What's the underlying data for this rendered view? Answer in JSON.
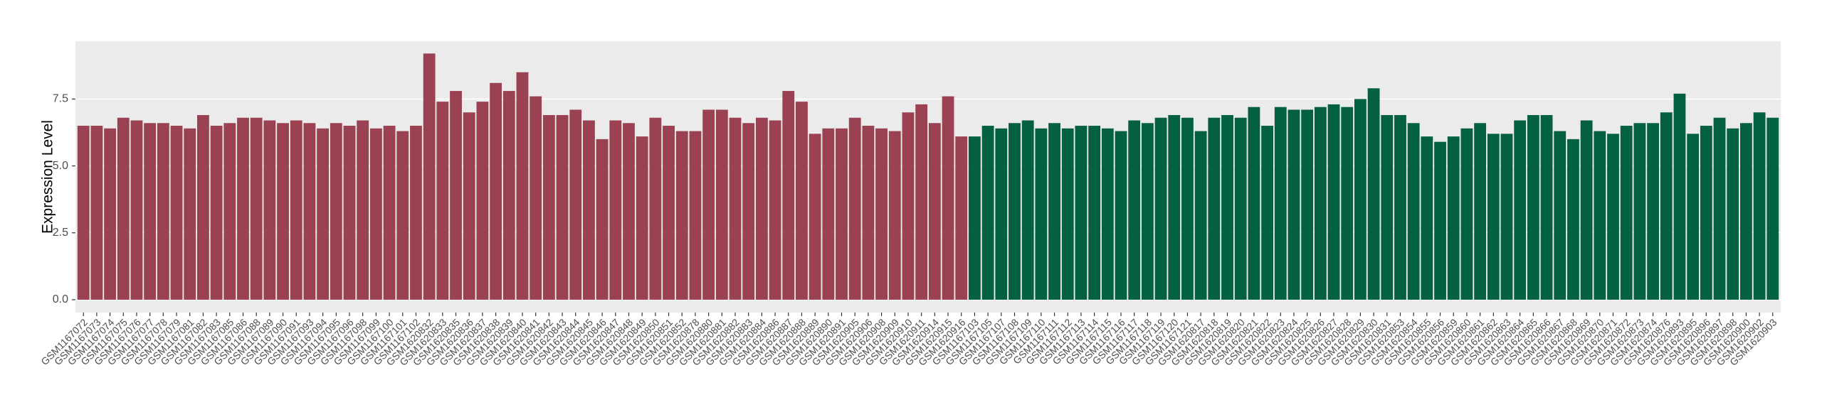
{
  "chart_data": {
    "type": "bar",
    "y_label": "Expression Level",
    "categories": [
      "GSM1167072",
      "GSM1167073",
      "GSM1167074",
      "GSM1167075",
      "GSM1167076",
      "GSM1167077",
      "GSM1167078",
      "GSM1167079",
      "GSM1167081",
      "GSM1167082",
      "GSM1167083",
      "GSM1167085",
      "GSM1167086",
      "GSM1167088",
      "GSM1167089",
      "GSM1167090",
      "GSM1167091",
      "GSM1167093",
      "GSM1167094",
      "GSM1167095",
      "GSM1167096",
      "GSM1167098",
      "GSM1167099",
      "GSM1167100",
      "GSM1167101",
      "GSM1167102",
      "GSM1620832",
      "GSM1620833",
      "GSM1620835",
      "GSM1620836",
      "GSM1620837",
      "GSM1620838",
      "GSM1620839",
      "GSM1620840",
      "GSM1620841",
      "GSM1620842",
      "GSM1620843",
      "GSM1620844",
      "GSM1620845",
      "GSM1620846",
      "GSM1620847",
      "GSM1620848",
      "GSM1620849",
      "GSM1620850",
      "GSM1620851",
      "GSM1620852",
      "GSM1620878",
      "GSM1620880",
      "GSM1620881",
      "GSM1620882",
      "GSM1620883",
      "GSM1620884",
      "GSM1620886",
      "GSM1620887",
      "GSM1620888",
      "GSM1620889",
      "GSM1620890",
      "GSM1620891",
      "GSM1620905",
      "GSM1620906",
      "GSM1620908",
      "GSM1620909",
      "GSM1620910",
      "GSM1620911",
      "GSM1620914",
      "GSM1620915",
      "GSM1620916",
      "GSM1167103",
      "GSM1167105",
      "GSM1167107",
      "GSM1167108",
      "GSM1167109",
      "GSM1167110",
      "GSM1167111",
      "GSM1167112",
      "GSM1167113",
      "GSM1167114",
      "GSM1167115",
      "GSM1167116",
      "GSM1167117",
      "GSM1167118",
      "GSM1167119",
      "GSM1167120",
      "GSM1167121",
      "GSM1620817",
      "GSM1620818",
      "GSM1620819",
      "GSM1620820",
      "GSM1620821",
      "GSM1620822",
      "GSM1620823",
      "GSM1620824",
      "GSM1620825",
      "GSM1620826",
      "GSM1620827",
      "GSM1620828",
      "GSM1620829",
      "GSM1620830",
      "GSM1620831",
      "GSM1620853",
      "GSM1620854",
      "GSM1620855",
      "GSM1620856",
      "GSM1620859",
      "GSM1620860",
      "GSM1620861",
      "GSM1620862",
      "GSM1620863",
      "GSM1620864",
      "GSM1620865",
      "GSM1620866",
      "GSM1620867",
      "GSM1620868",
      "GSM1620869",
      "GSM1620870",
      "GSM1620871",
      "GSM1620872",
      "GSM1620873",
      "GSM1620874",
      "GSM1620876",
      "GSM1620893",
      "GSM1620895",
      "GSM1620896",
      "GSM1620897",
      "GSM1620898",
      "GSM1620900",
      "GSM1620902",
      "GSM1620903"
    ],
    "values": [
      6.5,
      6.5,
      6.4,
      6.8,
      6.7,
      6.6,
      6.6,
      6.5,
      6.4,
      6.9,
      6.5,
      6.6,
      6.8,
      6.8,
      6.7,
      6.6,
      6.7,
      6.6,
      6.4,
      6.6,
      6.5,
      6.7,
      6.4,
      6.5,
      6.3,
      6.5,
      9.2,
      7.4,
      7.8,
      7.0,
      7.4,
      8.1,
      7.8,
      8.5,
      7.6,
      6.9,
      6.9,
      7.1,
      6.7,
      6.0,
      6.7,
      6.6,
      6.1,
      6.8,
      6.5,
      6.3,
      6.3,
      7.1,
      7.1,
      6.8,
      6.6,
      6.8,
      6.7,
      7.8,
      7.4,
      6.2,
      6.4,
      6.4,
      6.8,
      6.5,
      6.4,
      6.3,
      7.0,
      7.3,
      6.6,
      7.6,
      6.1,
      6.1,
      6.5,
      6.4,
      6.6,
      6.7,
      6.4,
      6.6,
      6.4,
      6.5,
      6.5,
      6.4,
      6.3,
      6.7,
      6.6,
      6.8,
      6.9,
      6.8,
      6.3,
      6.8,
      6.9,
      6.8,
      7.2,
      6.5,
      7.2,
      7.1,
      7.1,
      7.2,
      7.3,
      7.2,
      7.5,
      7.9,
      6.9,
      6.9,
      6.6,
      6.1,
      5.9,
      6.1,
      6.4,
      6.6,
      6.2,
      6.2,
      6.7,
      6.9,
      6.9,
      6.3,
      6.0,
      6.7,
      6.3,
      6.2,
      6.5,
      6.6,
      6.6,
      7.0,
      7.7,
      6.2,
      6.5,
      6.8,
      6.4,
      6.6,
      7.0,
      6.8
    ],
    "colors": [
      "#9a4152",
      "#9a4152",
      "#9a4152",
      "#9a4152",
      "#9a4152",
      "#9a4152",
      "#9a4152",
      "#9a4152",
      "#9a4152",
      "#9a4152",
      "#9a4152",
      "#9a4152",
      "#9a4152",
      "#9a4152",
      "#9a4152",
      "#9a4152",
      "#9a4152",
      "#9a4152",
      "#9a4152",
      "#9a4152",
      "#9a4152",
      "#9a4152",
      "#9a4152",
      "#9a4152",
      "#9a4152",
      "#9a4152",
      "#9a4152",
      "#9a4152",
      "#9a4152",
      "#9a4152",
      "#9a4152",
      "#9a4152",
      "#9a4152",
      "#9a4152",
      "#9a4152",
      "#9a4152",
      "#9a4152",
      "#9a4152",
      "#9a4152",
      "#9a4152",
      "#9a4152",
      "#9a4152",
      "#9a4152",
      "#9a4152",
      "#9a4152",
      "#9a4152",
      "#9a4152",
      "#9a4152",
      "#9a4152",
      "#9a4152",
      "#9a4152",
      "#9a4152",
      "#9a4152",
      "#9a4152",
      "#9a4152",
      "#9a4152",
      "#9a4152",
      "#9a4152",
      "#9a4152",
      "#9a4152",
      "#9a4152",
      "#9a4152",
      "#9a4152",
      "#9a4152",
      "#9a4152",
      "#9a4152",
      "#9a4152",
      "#04613f",
      "#04613f",
      "#04613f",
      "#04613f",
      "#04613f",
      "#04613f",
      "#04613f",
      "#04613f",
      "#04613f",
      "#04613f",
      "#04613f",
      "#04613f",
      "#04613f",
      "#04613f",
      "#04613f",
      "#04613f",
      "#04613f",
      "#04613f",
      "#04613f",
      "#04613f",
      "#04613f",
      "#04613f",
      "#04613f",
      "#04613f",
      "#04613f",
      "#04613f",
      "#04613f",
      "#04613f",
      "#04613f",
      "#04613f",
      "#04613f",
      "#04613f",
      "#04613f",
      "#04613f",
      "#04613f",
      "#04613f",
      "#04613f",
      "#04613f",
      "#04613f",
      "#04613f",
      "#04613f",
      "#04613f",
      "#04613f",
      "#04613f",
      "#04613f",
      "#04613f",
      "#04613f",
      "#04613f",
      "#04613f",
      "#04613f",
      "#04613f",
      "#04613f",
      "#04613f",
      "#04613f",
      "#04613f",
      "#04613f",
      "#04613f",
      "#04613f",
      "#04613f",
      "#04613f",
      "#04613f"
    ],
    "ylim": [
      -0.48,
      9.66
    ],
    "yticks": [
      {
        "value": 0,
        "label": "0.0"
      },
      {
        "value": 2.5,
        "label": "2.5"
      },
      {
        "value": 5,
        "label": "5.0"
      },
      {
        "value": 7.5,
        "label": "7.5"
      }
    ],
    "grid": true
  }
}
